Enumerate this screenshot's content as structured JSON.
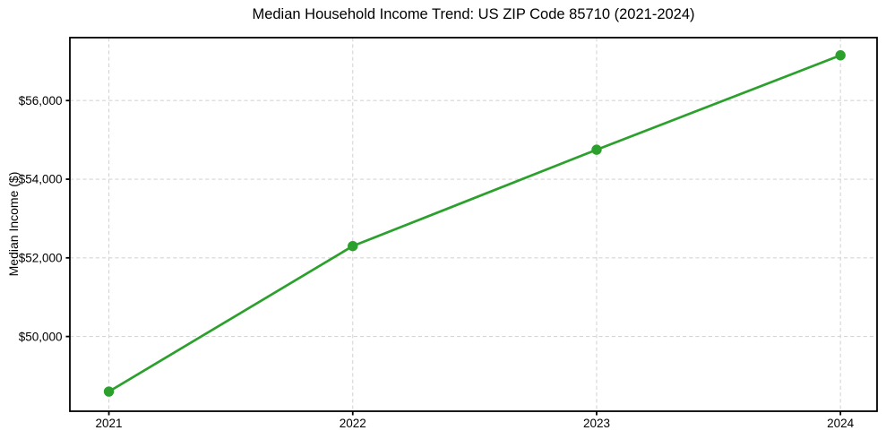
{
  "chart_data": {
    "type": "line",
    "title": "Median Household Income Trend: US ZIP Code 85710 (2021-2024)",
    "xlabel": "",
    "ylabel": "Median Income ($)",
    "x": [
      2021,
      2022,
      2023,
      2024
    ],
    "values": [
      48600,
      52300,
      54750,
      57150
    ],
    "xticks": {
      "values": [
        2021,
        2022,
        2023,
        2024
      ],
      "labels": [
        "2021",
        "2022",
        "2023",
        "2024"
      ]
    },
    "yticks": {
      "values": [
        50000,
        52000,
        54000,
        56000
      ],
      "labels": [
        "$50,000",
        "$52,000",
        "$54,000",
        "$56,000"
      ]
    },
    "xlim": [
      2020.84,
      2024.15
    ],
    "ylim": [
      48100,
      57600
    ],
    "grid": true,
    "grid_style": "dashed",
    "legend": "none",
    "colors": {
      "line": "#2ca02c",
      "marker": "#2ca02c",
      "grid": "#d5d5d5",
      "spine": "#000000",
      "text": "#000000",
      "background": "#ffffff"
    }
  }
}
